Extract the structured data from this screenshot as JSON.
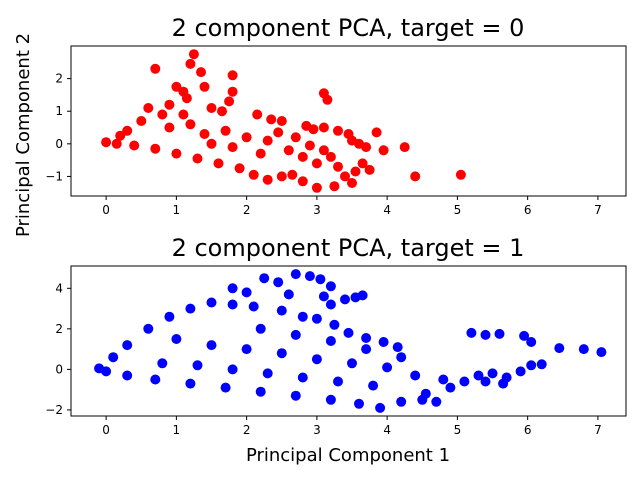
{
  "figure": {
    "ylabel": "Principal Component 2",
    "xlabel": "Principal Component 1"
  },
  "chart_data": [
    {
      "type": "scatter",
      "title": "2 component PCA, target = 0",
      "xlabel": "",
      "ylabel": "",
      "xlim": [
        -0.5,
        7.4
      ],
      "ylim": [
        -1.6,
        3.0
      ],
      "xticks": [
        "0",
        "1",
        "2",
        "3",
        "4",
        "5",
        "6",
        "7"
      ],
      "yticks": [
        "−1",
        "0",
        "1",
        "2"
      ],
      "ytick_values": [
        -1,
        0,
        1,
        2
      ],
      "grid": false,
      "color": "#ff0000",
      "points": [
        [
          1.25,
          2.75
        ],
        [
          0.7,
          2.3
        ],
        [
          1.2,
          2.45
        ],
        [
          1.35,
          2.2
        ],
        [
          1.4,
          1.75
        ],
        [
          1.8,
          2.1
        ],
        [
          1.8,
          1.6
        ],
        [
          1.75,
          1.3
        ],
        [
          1.0,
          1.75
        ],
        [
          1.1,
          1.6
        ],
        [
          1.15,
          1.4
        ],
        [
          1.5,
          1.1
        ],
        [
          1.65,
          1.0
        ],
        [
          2.15,
          0.9
        ],
        [
          3.1,
          1.55
        ],
        [
          3.15,
          1.35
        ],
        [
          2.35,
          0.75
        ],
        [
          2.5,
          0.7
        ],
        [
          2.85,
          0.55
        ],
        [
          2.95,
          0.45
        ],
        [
          3.1,
          0.5
        ],
        [
          3.3,
          0.4
        ],
        [
          3.45,
          0.3
        ],
        [
          3.5,
          0.1
        ],
        [
          3.6,
          0.0
        ],
        [
          3.7,
          -0.1
        ],
        [
          3.85,
          0.35
        ],
        [
          3.95,
          -0.2
        ],
        [
          4.25,
          -0.1
        ],
        [
          4.4,
          -1.0
        ],
        [
          5.05,
          -0.95
        ],
        [
          3.1,
          -0.2
        ],
        [
          3.2,
          -0.4
        ],
        [
          3.3,
          -0.7
        ],
        [
          3.4,
          -1.0
        ],
        [
          3.5,
          -1.2
        ],
        [
          3.55,
          -0.85
        ],
        [
          3.65,
          -0.6
        ],
        [
          3.75,
          -0.8
        ],
        [
          3.25,
          -1.3
        ],
        [
          3.0,
          -1.35
        ],
        [
          2.8,
          -1.15
        ],
        [
          2.65,
          -0.95
        ],
        [
          2.5,
          -1.0
        ],
        [
          2.3,
          -1.1
        ],
        [
          2.1,
          -0.95
        ],
        [
          1.9,
          -0.75
        ],
        [
          1.6,
          -0.6
        ],
        [
          1.3,
          -0.45
        ],
        [
          1.0,
          -0.3
        ],
        [
          0.7,
          -0.15
        ],
        [
          0.4,
          -0.05
        ],
        [
          0.15,
          0.0
        ],
        [
          0.0,
          0.05
        ],
        [
          0.3,
          0.4
        ],
        [
          0.5,
          0.7
        ],
        [
          0.6,
          1.1
        ],
        [
          0.8,
          0.9
        ],
        [
          0.9,
          0.5
        ],
        [
          1.2,
          0.6
        ],
        [
          1.4,
          0.3
        ],
        [
          1.7,
          0.4
        ],
        [
          2.0,
          0.2
        ],
        [
          2.3,
          0.1
        ],
        [
          2.6,
          -0.2
        ],
        [
          2.8,
          -0.4
        ],
        [
          3.0,
          -0.6
        ],
        [
          2.2,
          -0.3
        ],
        [
          1.8,
          -0.1
        ],
        [
          1.5,
          0.0
        ],
        [
          0.2,
          0.25
        ],
        [
          0.9,
          1.2
        ],
        [
          1.1,
          0.9
        ],
        [
          2.45,
          0.35
        ],
        [
          2.7,
          0.2
        ],
        [
          2.9,
          -0.05
        ]
      ]
    },
    {
      "type": "scatter",
      "title": "2 component PCA, target = 1",
      "xlabel": "Principal Component 1",
      "ylabel": "",
      "xlim": [
        -0.5,
        7.4
      ],
      "ylim": [
        -2.3,
        5.1
      ],
      "xticks": [
        "0",
        "1",
        "2",
        "3",
        "4",
        "5",
        "6",
        "7"
      ],
      "yticks": [
        "−2",
        "0",
        "2",
        "4"
      ],
      "ytick_values": [
        -2,
        0,
        2,
        4
      ],
      "grid": false,
      "color": "#0000ff",
      "points": [
        [
          2.7,
          4.7
        ],
        [
          2.9,
          4.6
        ],
        [
          3.05,
          4.45
        ],
        [
          2.25,
          4.5
        ],
        [
          2.45,
          4.3
        ],
        [
          1.8,
          4.0
        ],
        [
          2.0,
          3.8
        ],
        [
          3.2,
          4.1
        ],
        [
          3.1,
          3.6
        ],
        [
          3.4,
          3.45
        ],
        [
          3.55,
          3.55
        ],
        [
          3.65,
          3.65
        ],
        [
          3.2,
          3.2
        ],
        [
          2.6,
          3.7
        ],
        [
          1.5,
          3.3
        ],
        [
          1.2,
          3.0
        ],
        [
          0.9,
          2.6
        ],
        [
          0.6,
          2.0
        ],
        [
          0.3,
          1.2
        ],
        [
          0.1,
          0.6
        ],
        [
          -0.1,
          0.05
        ],
        [
          0.0,
          -0.1
        ],
        [
          0.3,
          -0.3
        ],
        [
          0.7,
          -0.5
        ],
        [
          1.2,
          -0.7
        ],
        [
          1.7,
          -0.9
        ],
        [
          2.2,
          -1.1
        ],
        [
          2.7,
          -1.3
        ],
        [
          3.2,
          -1.5
        ],
        [
          3.6,
          -1.7
        ],
        [
          3.9,
          -1.9
        ],
        [
          4.2,
          -1.6
        ],
        [
          4.5,
          -1.5
        ],
        [
          4.7,
          -1.6
        ],
        [
          4.55,
          -1.2
        ],
        [
          4.9,
          -0.9
        ],
        [
          5.1,
          -0.6
        ],
        [
          5.3,
          -0.3
        ],
        [
          5.5,
          -0.2
        ],
        [
          5.7,
          -0.4
        ],
        [
          5.9,
          -0.1
        ],
        [
          6.05,
          0.2
        ],
        [
          6.2,
          0.25
        ],
        [
          5.2,
          1.8
        ],
        [
          5.4,
          1.7
        ],
        [
          5.6,
          1.75
        ],
        [
          5.95,
          1.65
        ],
        [
          6.05,
          1.35
        ],
        [
          6.45,
          1.05
        ],
        [
          6.8,
          1.0
        ],
        [
          7.05,
          0.85
        ],
        [
          5.4,
          -0.6
        ],
        [
          5.65,
          -0.7
        ],
        [
          4.15,
          1.1
        ],
        [
          3.95,
          1.35
        ],
        [
          3.7,
          1.55
        ],
        [
          3.45,
          1.8
        ],
        [
          3.25,
          2.2
        ],
        [
          3.0,
          2.5
        ],
        [
          2.8,
          2.6
        ],
        [
          2.5,
          2.9
        ],
        [
          2.1,
          3.1
        ],
        [
          1.8,
          3.2
        ],
        [
          1.0,
          1.5
        ],
        [
          1.5,
          1.2
        ],
        [
          2.0,
          1.0
        ],
        [
          2.5,
          0.8
        ],
        [
          3.0,
          0.5
        ],
        [
          3.5,
          0.3
        ],
        [
          4.0,
          0.1
        ],
        [
          4.4,
          -0.3
        ],
        [
          4.8,
          -0.5
        ],
        [
          3.8,
          -0.8
        ],
        [
          3.3,
          -0.6
        ],
        [
          2.8,
          -0.4
        ],
        [
          2.3,
          -0.2
        ],
        [
          1.8,
          0.0
        ],
        [
          1.3,
          0.2
        ],
        [
          0.8,
          0.3
        ],
        [
          2.2,
          2.0
        ],
        [
          2.7,
          1.7
        ],
        [
          3.2,
          1.4
        ],
        [
          3.7,
          1.0
        ],
        [
          4.2,
          0.6
        ]
      ]
    }
  ]
}
